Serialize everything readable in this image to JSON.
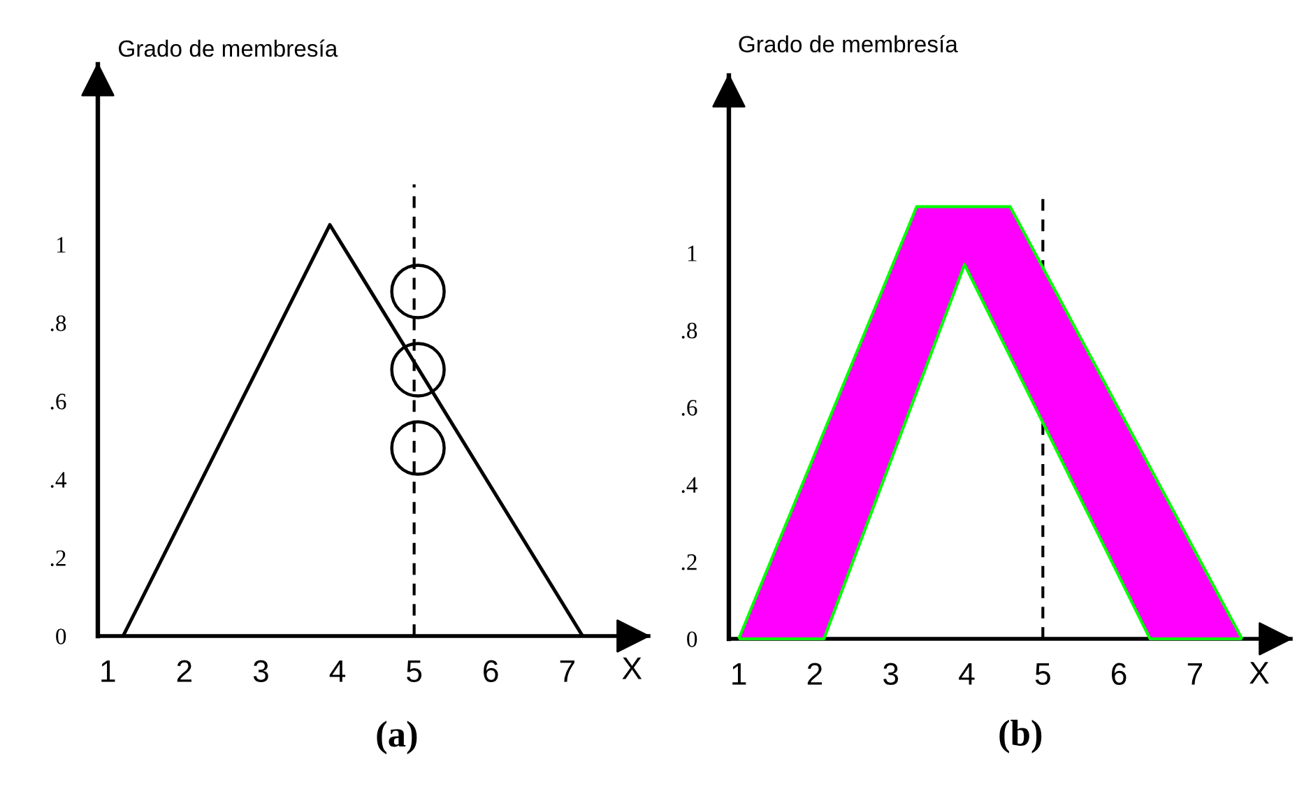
{
  "chart_data": [
    {
      "type": "line",
      "title": "(a)",
      "xlabel": "X",
      "ylabel": "Grado de membresía",
      "xlim": [
        0.87,
        8.06
      ],
      "ylim": [
        0,
        1.46
      ],
      "xticks": [
        1,
        2,
        3,
        4,
        5,
        6,
        7
      ],
      "yticks": [
        0,
        {
          "value": 0.2,
          "label": ".2"
        },
        {
          "value": 0.4,
          "label": ".4"
        },
        {
          "value": 0.6,
          "label": ".6"
        },
        {
          "value": 0.8,
          "label": ".8"
        },
        1
      ],
      "ref_lines": [
        {
          "axis": "x",
          "value": 5,
          "color": "#000000",
          "line_style": "dashed"
        }
      ],
      "series": [
        {
          "color": "#000000",
          "x": [
            1.2,
            3.9,
            7.2
          ],
          "values": [
            0,
            1.05,
            0
          ]
        },
        {
          "type": "scatter",
          "color": "#000000",
          "marker": "circle",
          "x": [
            5.05,
            5.05,
            5.05
          ],
          "values": [
            0.88,
            0.68,
            0.48
          ]
        }
      ]
    },
    {
      "type": "line",
      "title": "(b)",
      "xlabel": "X",
      "ylabel": "Grado de membresía",
      "xlim": [
        0.87,
        8.26
      ],
      "ylim": [
        0,
        1.46
      ],
      "xticks": [
        1,
        2,
        3,
        4,
        5,
        6,
        7
      ],
      "yticks": [
        0,
        {
          "value": 0.2,
          "label": ".2"
        },
        {
          "value": 0.4,
          "label": ".4"
        },
        {
          "value": 0.6,
          "label": ".6"
        },
        {
          "value": 0.8,
          "label": ".8"
        },
        1
      ],
      "ref_lines": [
        {
          "axis": "x",
          "value": 5,
          "color": "#000000",
          "line_style": "dashed"
        }
      ],
      "series": [
        {
          "color": "#ff00ff",
          "x": [
            1,
            2.12,
            3.34,
            3.97,
            4.57,
            6.41,
            7.62
          ],
          "values": [
            null,
            null,
            null,
            null,
            null,
            null,
            null
          ],
          "lower": [
            0,
            0,
            0.64,
            0.97,
            0.73,
            0,
            0
          ],
          "upper": [
            0,
            0.54,
            1.12,
            1.12,
            1.12,
            0.44,
            0
          ]
        },
        {
          "color": "#00ff00",
          "x": [
            1,
            3.34,
            4.57,
            7.62
          ],
          "values": [
            0,
            1.12,
            1.12,
            0
          ]
        },
        {
          "color": "#00ff00",
          "x": [
            1,
            2.12,
            3.97,
            6.41,
            7.62
          ],
          "values": [
            0,
            0,
            0.97,
            0,
            0
          ]
        }
      ]
    }
  ]
}
